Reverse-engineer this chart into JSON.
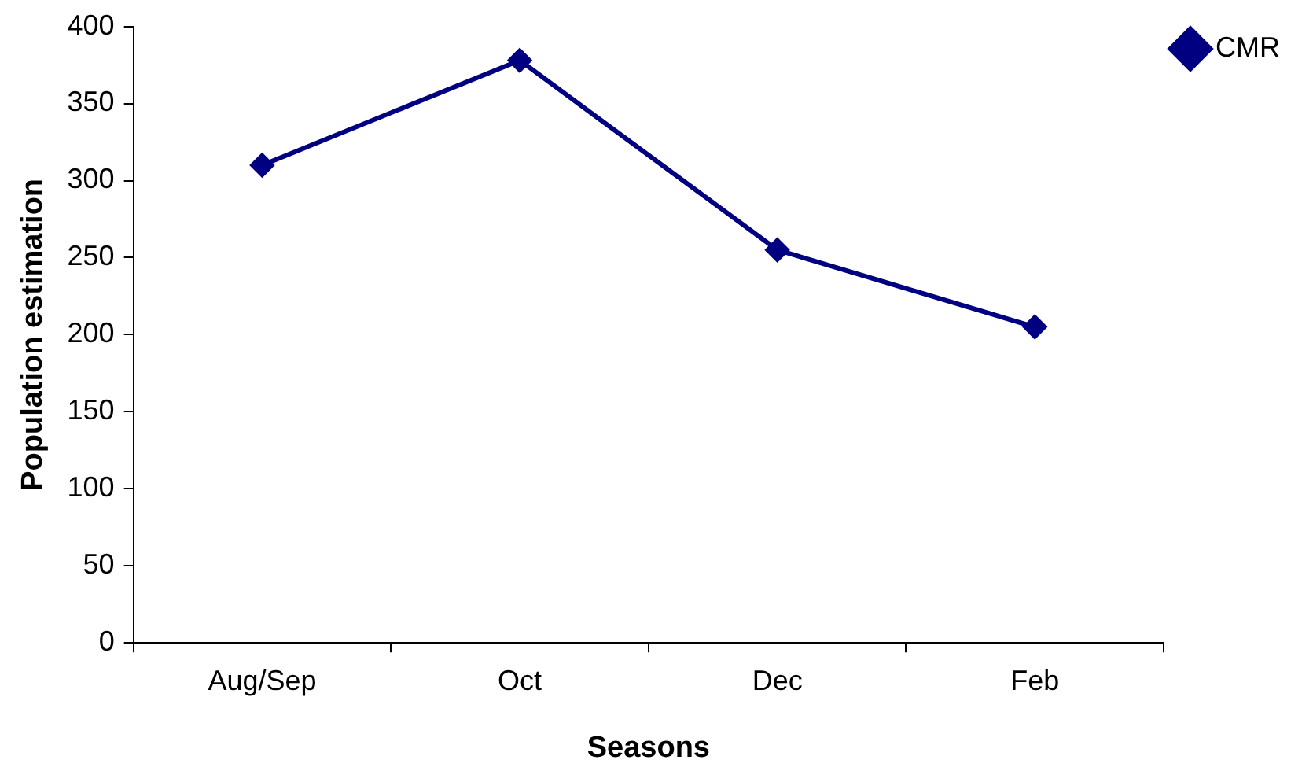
{
  "chart_data": {
    "type": "line",
    "xlabel": "Seasons",
    "ylabel": "Population estimation",
    "categories": [
      "Aug/Sep",
      "Oct",
      "Dec",
      "Feb"
    ],
    "series": [
      {
        "name": "CMR",
        "color": "#000080",
        "values": [
          310,
          378,
          255,
          205
        ]
      }
    ],
    "ylim": [
      0,
      400
    ],
    "yticks": [
      0,
      50,
      100,
      150,
      200,
      250,
      300,
      350,
      400
    ],
    "grid": false,
    "legend": "top right",
    "marker": "diamond",
    "line_style": "solid"
  }
}
